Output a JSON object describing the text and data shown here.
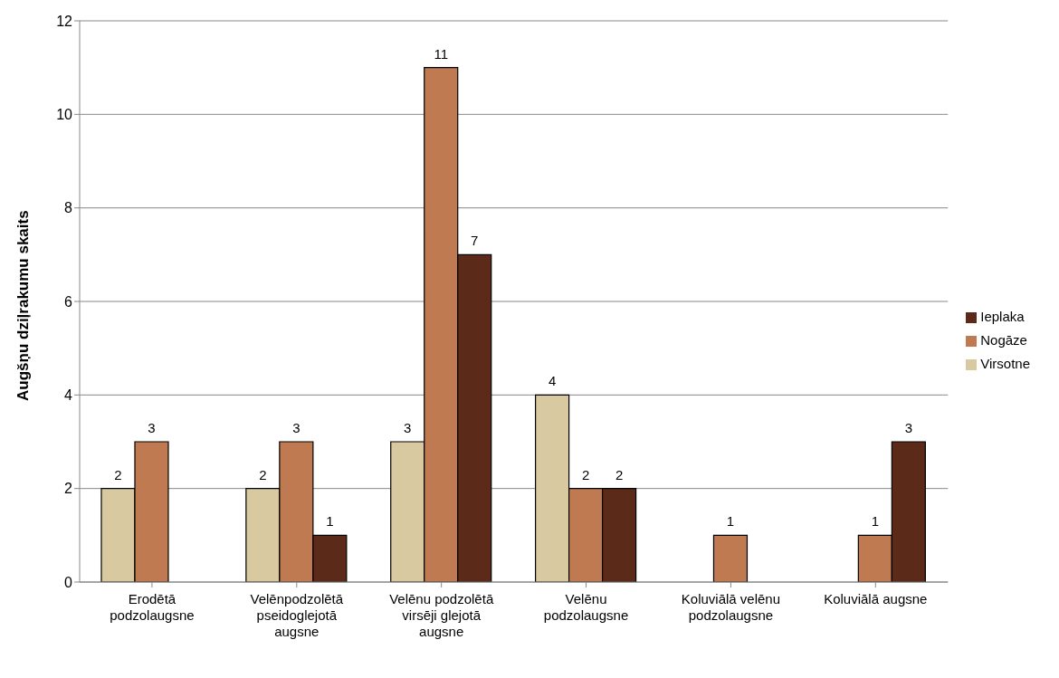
{
  "chart_data": {
    "type": "bar",
    "ylabel": "Augšņu dziļrakumu skaits",
    "categories": [
      "Erodētā\npodzolaugsne",
      "Velēnpodzolētā\npseidoglejotā\naugsne",
      "Velēnu podzolētā\nvirsēji glejotā\naugsne",
      "Velēnu\npodzolaugsne",
      "Koluviālā velēnu\npodzolaugsne",
      "Koluviālā augsne"
    ],
    "series": [
      {
        "name": "Virsotne",
        "color": "#d8c9a0",
        "values": [
          2,
          2,
          3,
          4,
          null,
          null
        ]
      },
      {
        "name": "Nogāze",
        "color": "#c07a52",
        "values": [
          3,
          3,
          11,
          2,
          1,
          1
        ]
      },
      {
        "name": "Ieplaka",
        "color": "#5c2a18",
        "values": [
          null,
          1,
          7,
          2,
          null,
          3
        ]
      }
    ],
    "ylim": [
      0,
      12
    ],
    "yticks": [
      0,
      2,
      4,
      6,
      8,
      10,
      12
    ],
    "grid": "y",
    "legend": "right",
    "data_labels": true
  }
}
